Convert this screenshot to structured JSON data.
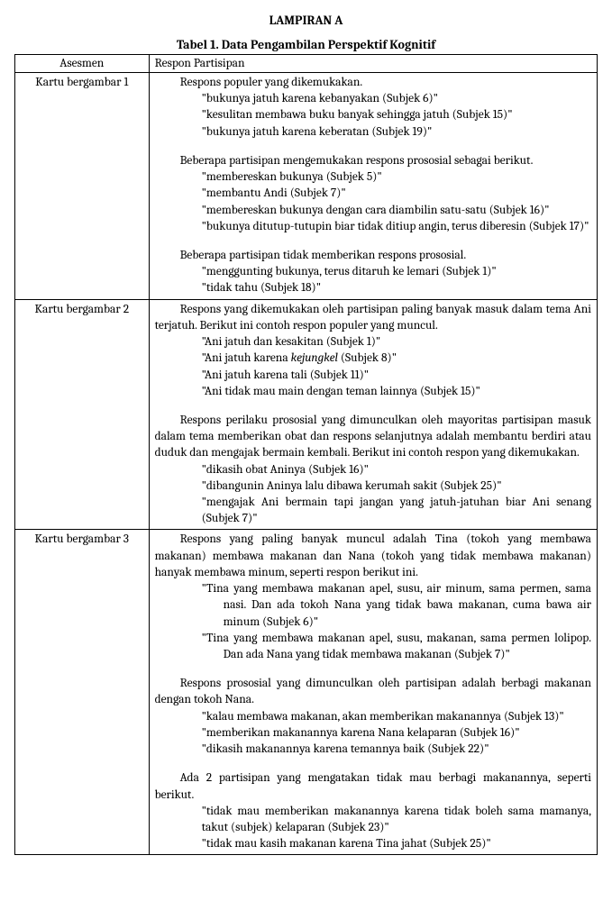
{
  "appendix_title": "LAMPIRAN A",
  "table_title": "Tabel 1. Data Pengambilan Perspektif Kognitif",
  "head_asesmen": "Asesmen",
  "head_respon": "Respon Partisipan",
  "rows": [
    {
      "asesmen": "Kartu bergambar 1",
      "blocks": [
        {
          "type": "para",
          "text": "Respons populer yang dikemukakan."
        },
        {
          "type": "quote",
          "text": "\"bukunya jatuh karena kebanyakan (Subjek 6)\""
        },
        {
          "type": "quote",
          "text": "\"kesulitan membawa buku banyak sehingga jatuh (Subjek 15)\""
        },
        {
          "type": "quote",
          "text": "\"bukunya jatuh karena keberatan (Subjek 19)\""
        },
        {
          "type": "spacer"
        },
        {
          "type": "para",
          "text": "Beberapa partisipan mengemukakan respons prososial sebagai berikut."
        },
        {
          "type": "quote",
          "text": "\"membereskan bukunya (Subjek 5)\""
        },
        {
          "type": "quote",
          "text": "\"membantu Andi (Subjek 7)\""
        },
        {
          "type": "quote",
          "text": "\"membereskan bukunya dengan cara diambilin satu-satu (Subjek 16)\""
        },
        {
          "type": "quote",
          "text": "\"bukunya ditutup-tutupin biar tidak ditiup angin, terus diberesin (Subjek 17)\""
        },
        {
          "type": "spacer"
        },
        {
          "type": "para",
          "text": "Beberapa partisipan tidak memberikan respons prososial."
        },
        {
          "type": "quote",
          "text": "\"menggunting bukunya, terus ditaruh ke lemari (Subjek 1)\""
        },
        {
          "type": "quote",
          "text": "\"tidak tahu (Subjek 18)\""
        }
      ]
    },
    {
      "asesmen": "Kartu bergambar 2",
      "blocks": [
        {
          "type": "para",
          "text": "Respons yang dikemukakan oleh partisipan paling banyak masuk dalam tema Ani terjatuh. Berikut ini contoh respon populer yang muncul."
        },
        {
          "type": "quote",
          "text": "\"Ani jatuh dan kesakitan (Subjek 1)\""
        },
        {
          "type": "quote-italic",
          "prefix": "\"Ani jatuh karena ",
          "italic": "kejungkel",
          "suffix": " (Subjek 8)\""
        },
        {
          "type": "quote",
          "text": "\"Ani jatuh karena tali (Subjek 11)\""
        },
        {
          "type": "quote",
          "text": "\"Ani tidak mau main dengan teman lainnya (Subjek 15)\""
        },
        {
          "type": "spacer"
        },
        {
          "type": "para",
          "text": "Respons perilaku prososial yang dimunculkan oleh mayoritas partisipan masuk dalam tema memberikan obat dan respons selanjutnya adalah membantu berdiri atau duduk dan mengajak bermain kembali. Berikut ini contoh respon yang dikemukakan."
        },
        {
          "type": "quote",
          "text": "\"dikasih obat Aninya (Subjek 16)\""
        },
        {
          "type": "quote",
          "text": "\"dibangunin Aninya lalu dibawa kerumah sakit (Subjek 25)\""
        },
        {
          "type": "quote",
          "text": "\"mengajak Ani bermain tapi jangan yang jatuh-jatuhan biar Ani senang (Subjek 7)\""
        }
      ]
    },
    {
      "asesmen": "Kartu bergambar 3",
      "blocks": [
        {
          "type": "para",
          "text": "Respons yang paling banyak muncul adalah Tina (tokoh yang membawa makanan) membawa makanan dan Nana (tokoh yang tidak membawa makanan) hanyak membawa minum, seperti respon berikut ini."
        },
        {
          "type": "quote-hang",
          "text": "\"Tina yang membawa makanan apel, susu, air minum, sama permen, sama nasi. Dan ada tokoh Nana yang tidak bawa makanan, cuma bawa air minum (Subjek 6)\""
        },
        {
          "type": "quote-hang",
          "text": "\"Tina yang membawa makanan apel, susu, makanan, sama permen lolipop. Dan ada Nana yang tidak membawa makanan (Subjek 7)\""
        },
        {
          "type": "spacer"
        },
        {
          "type": "para",
          "text": "Respons prososial yang dimunculkan oleh partisipan adalah berbagi makanan dengan tokoh Nana."
        },
        {
          "type": "quote",
          "text": "\"kalau membawa makanan, akan memberikan makanannya (Subjek 13)\""
        },
        {
          "type": "quote",
          "text": "\"memberikan makanannya karena Nana kelaparan (Subjek 16)\""
        },
        {
          "type": "quote",
          "text": "\"dikasih makanannya karena temannya baik (Subjek 22)\""
        },
        {
          "type": "spacer"
        },
        {
          "type": "para",
          "text": "Ada 2 partisipan yang mengatakan tidak mau berbagi makanannya, seperti berikut."
        },
        {
          "type": "quote",
          "text": "\"tidak mau memberikan makanannya karena tidak boleh sama mamanya, takut (subjek) kelaparan (Subjek 23)\""
        },
        {
          "type": "quote",
          "text": "\"tidak mau kasih makanan karena Tina jahat (Subjek 25)\""
        }
      ]
    }
  ]
}
